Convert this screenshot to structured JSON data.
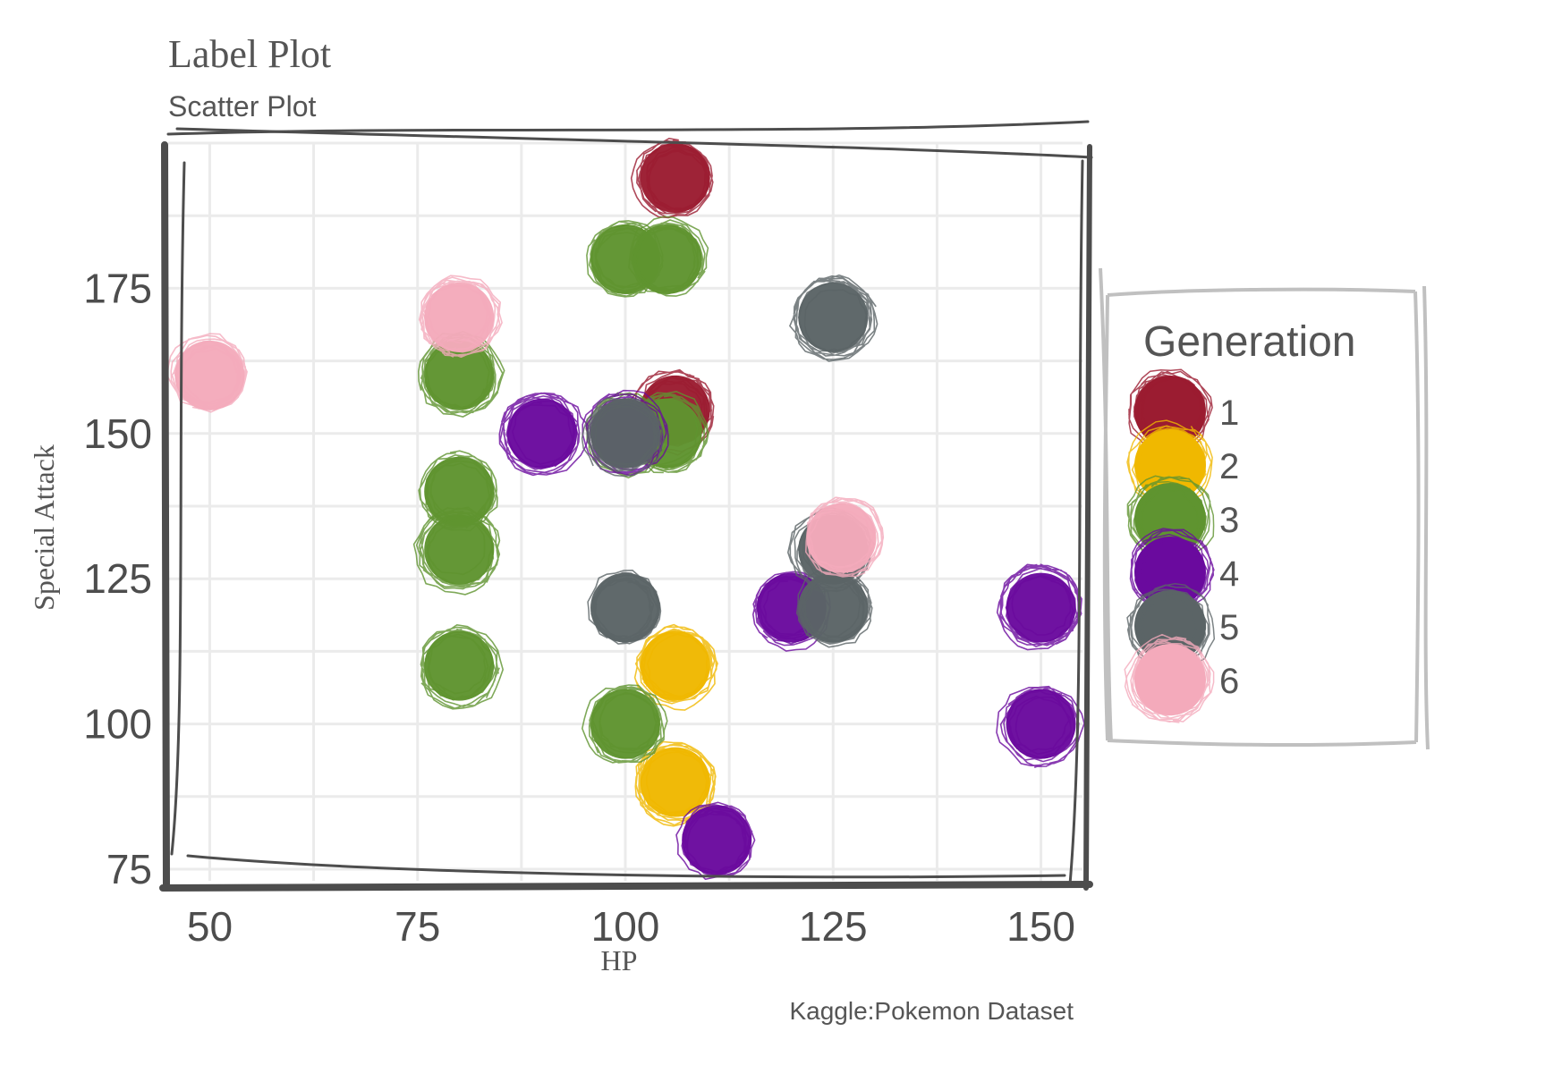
{
  "chart_data": {
    "type": "scatter",
    "title": "Label Plot",
    "subtitle": "Scatter Plot",
    "xlabel": "HP",
    "ylabel": "Special Attack",
    "caption": "Kaggle:Pokemon Dataset",
    "xlim": [
      45,
      155
    ],
    "ylim": [
      73,
      200
    ],
    "x_ticks": [
      50,
      75,
      100,
      125,
      150
    ],
    "y_ticks": [
      75,
      100,
      125,
      150,
      175
    ],
    "grid": true,
    "legend": {
      "title": "Generation",
      "position": "right"
    },
    "series": [
      {
        "name": "1",
        "color": "#9b1c31",
        "points": [
          {
            "x": 106,
            "y": 194
          },
          {
            "x": 106,
            "y": 154
          }
        ]
      },
      {
        "name": "2",
        "color": "#f0b800",
        "points": [
          {
            "x": 106,
            "y": 110
          },
          {
            "x": 106,
            "y": 90
          }
        ]
      },
      {
        "name": "3",
        "color": "#5f9430",
        "points": [
          {
            "x": 100,
            "y": 180
          },
          {
            "x": 105,
            "y": 180
          },
          {
            "x": 80,
            "y": 160
          },
          {
            "x": 80,
            "y": 140
          },
          {
            "x": 80,
            "y": 130
          },
          {
            "x": 80,
            "y": 110
          },
          {
            "x": 100,
            "y": 100
          },
          {
            "x": 105,
            "y": 150
          },
          {
            "x": 100,
            "y": 150
          }
        ]
      },
      {
        "name": "4",
        "color": "#6a0a9e",
        "points": [
          {
            "x": 90,
            "y": 150
          },
          {
            "x": 100,
            "y": 150
          },
          {
            "x": 120,
            "y": 120
          },
          {
            "x": 150,
            "y": 120
          },
          {
            "x": 150,
            "y": 100
          },
          {
            "x": 111,
            "y": 80
          }
        ]
      },
      {
        "name": "5",
        "color": "#5b6466",
        "points": [
          {
            "x": 125,
            "y": 170
          },
          {
            "x": 100,
            "y": 150
          },
          {
            "x": 100,
            "y": 120
          },
          {
            "x": 125,
            "y": 130
          },
          {
            "x": 125,
            "y": 120
          }
        ]
      },
      {
        "name": "6",
        "color": "#f4aabb",
        "points": [
          {
            "x": 80,
            "y": 170
          },
          {
            "x": 50,
            "y": 160
          },
          {
            "x": 126,
            "y": 132
          }
        ]
      }
    ]
  }
}
